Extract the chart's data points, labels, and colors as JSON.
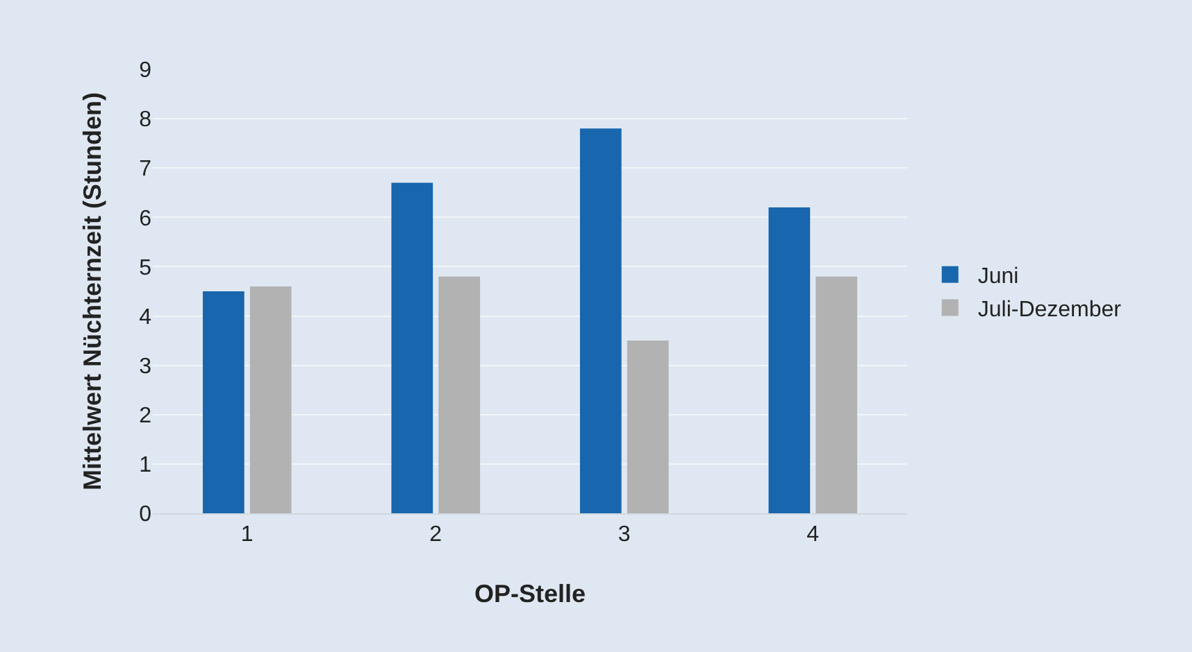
{
  "chart_data": {
    "type": "bar",
    "xlabel": "OP-Stelle",
    "ylabel": "Mittelwert Nüchternzeit (Stunden)",
    "categories": [
      "1",
      "2",
      "3",
      "4"
    ],
    "series": [
      {
        "name": "Juni",
        "color": "#1866ad",
        "values": [
          4.5,
          6.7,
          7.8,
          6.2
        ]
      },
      {
        "name": "Juli-Dezember",
        "color": "#b2b2b2",
        "values": [
          4.6,
          4.8,
          3.5,
          4.8
        ]
      }
    ],
    "ylim": [
      0,
      9
    ],
    "yticks": [
      0,
      1,
      2,
      3,
      4,
      5,
      6,
      7,
      8,
      9
    ],
    "grid": "y",
    "legend": "right"
  }
}
